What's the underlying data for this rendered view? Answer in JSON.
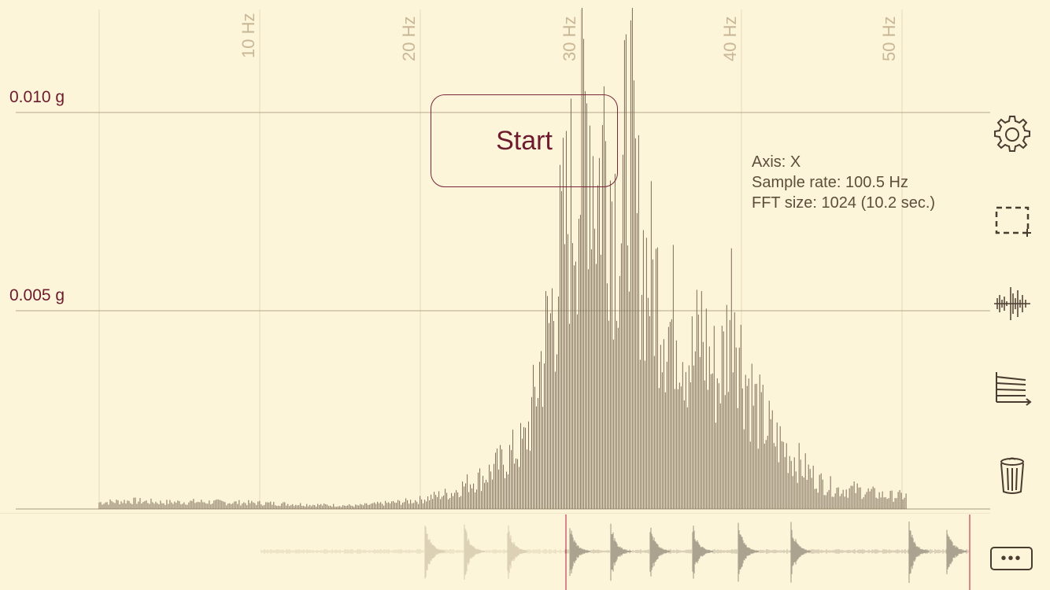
{
  "spectrum": {
    "y_labels": [
      "0.010 g",
      "0.005 g"
    ],
    "x_labels": [
      "10 Hz",
      "20 Hz",
      "30 Hz",
      "40 Hz",
      "50 Hz"
    ]
  },
  "start_label": "Start",
  "info": {
    "axis": "Axis: X",
    "sample_rate": "Sample rate: 100.5 Hz",
    "fft_size": "FFT size: 1024 (10.2 sec.)"
  },
  "toolbar": {
    "settings_icon": "gear-icon",
    "select_icon": "dashed-rect-icon",
    "waveform_icon": "waveform-icon",
    "axis_icon": "axis-lines-icon",
    "trash_icon": "trash-icon"
  },
  "more_label": "•••",
  "colors": {
    "background": "#fdf5d9",
    "accent": "#6d1a2e",
    "grid": "#c9b796",
    "bars": "#7b6b58"
  },
  "chart_data": {
    "type": "bar",
    "xlabel": "",
    "ylabel": "",
    "x_ticks": [
      10,
      20,
      30,
      40,
      50
    ],
    "x_tick_labels": [
      "10 Hz",
      "20 Hz",
      "30 Hz",
      "40 Hz",
      "50 Hz"
    ],
    "y_ticks": [
      0.005,
      0.01
    ],
    "y_tick_labels": [
      "0.005 g",
      "0.010 g"
    ],
    "xlim": [
      0,
      50.25
    ],
    "ylim": [
      0,
      0.0125
    ],
    "series": [
      {
        "values_note_free": true,
        "x": [
          0,
          2,
          4,
          6,
          8,
          10,
          12,
          14,
          16,
          18,
          19,
          20,
          21,
          22,
          23,
          24,
          25,
          26,
          26.5,
          27,
          27.5,
          28,
          28.5,
          29,
          29.5,
          30,
          30.5,
          31,
          31.5,
          32,
          32.5,
          33,
          33.5,
          34,
          34.5,
          35,
          35.5,
          36,
          36.5,
          37,
          37.5,
          38,
          38.5,
          39,
          39.5,
          40,
          41,
          42,
          43,
          44,
          45,
          46,
          47,
          48,
          49,
          50
        ],
        "values": [
          0.0002,
          0.00025,
          0.0002,
          0.00022,
          0.0002,
          0.00018,
          0.00015,
          0.00012,
          0.0001,
          0.00018,
          0.00022,
          0.00028,
          0.0004,
          0.0005,
          0.0008,
          0.001,
          0.0014,
          0.0018,
          0.002,
          0.003,
          0.0045,
          0.0055,
          0.007,
          0.0085,
          0.0095,
          0.0105,
          0.0125,
          0.0095,
          0.0115,
          0.0095,
          0.0085,
          0.0122,
          0.0085,
          0.0075,
          0.007,
          0.0065,
          0.0055,
          0.006,
          0.005,
          0.0045,
          0.0055,
          0.0045,
          0.004,
          0.0048,
          0.007,
          0.0045,
          0.003,
          0.0022,
          0.0017,
          0.0012,
          0.0008,
          0.0006,
          0.0006,
          0.0005,
          0.0004,
          0.0004
        ]
      }
    ]
  }
}
